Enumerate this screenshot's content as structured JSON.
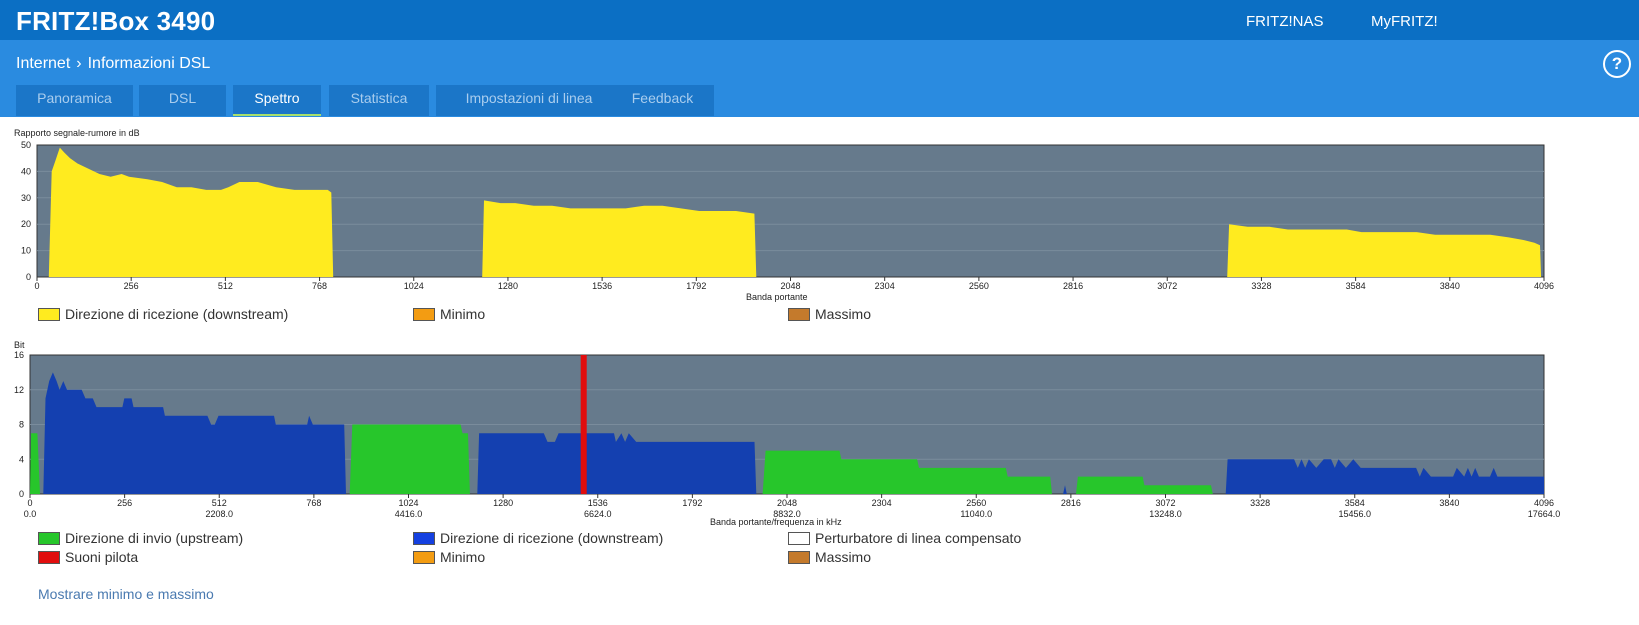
{
  "header": {
    "brand": "FRITZ!Box 3490",
    "links": [
      "FRITZ!NAS",
      "MyFRITZ!"
    ]
  },
  "breadcrumb": {
    "parent": "Internet",
    "current": "Informazioni DSL",
    "help": "?"
  },
  "tabs": [
    {
      "label": "Panoramica",
      "active": false
    },
    {
      "label": "DSL",
      "active": false
    },
    {
      "label": "Spettro",
      "active": true
    },
    {
      "label": "Statistica",
      "active": false
    },
    {
      "label": "Impostazioni di linea",
      "active": false
    },
    {
      "label": "Feedback",
      "active": false
    }
  ],
  "colors": {
    "plot_bg": "#667a8c",
    "downstream_snr": "#ffeb1f",
    "upstream_bits": "#27c62b",
    "downstream_bits": "#1440b0",
    "pilot": "#e10d0d",
    "minimum": "#f39c12",
    "maximum": "#c47a2c",
    "compensated": "#ffffff"
  },
  "chart_data": [
    {
      "type": "area",
      "title": "Rapporto segnale-rumore in dB",
      "xlabel": "Banda portante",
      "ylabel": "",
      "xlim": [
        0,
        4096
      ],
      "ylim": [
        0,
        50
      ],
      "xticks": [
        0,
        256,
        512,
        768,
        1024,
        1280,
        1536,
        1792,
        2048,
        2304,
        2560,
        2816,
        3072,
        3328,
        3584,
        3840,
        4096
      ],
      "yticks": [
        0,
        10,
        20,
        30,
        40,
        50
      ],
      "grid": true,
      "legend_position": "bottom",
      "legend": [
        "Direzione di ricezione (downstream)",
        "Minimo",
        "Massimo"
      ],
      "series": [
        {
          "name": "Direzione di ricezione (downstream)",
          "color_key": "downstream_snr",
          "points": [
            [
              32,
              0
            ],
            [
              40,
              40
            ],
            [
              50,
              44
            ],
            [
              62,
              49
            ],
            [
              75,
              47
            ],
            [
              90,
              45
            ],
            [
              110,
              43
            ],
            [
              140,
              41
            ],
            [
              170,
              39
            ],
            [
              200,
              38
            ],
            [
              230,
              39
            ],
            [
              250,
              38
            ],
            [
              300,
              37
            ],
            [
              340,
              36
            ],
            [
              380,
              34
            ],
            [
              420,
              34
            ],
            [
              460,
              33
            ],
            [
              500,
              33
            ],
            [
              520,
              34
            ],
            [
              550,
              36
            ],
            [
              600,
              36
            ],
            [
              650,
              34
            ],
            [
              700,
              33
            ],
            [
              750,
              33
            ],
            [
              790,
              33
            ],
            [
              800,
              32
            ],
            [
              805,
              0
            ],
            [
              1210,
              0
            ],
            [
              1215,
              29
            ],
            [
              1260,
              28
            ],
            [
              1300,
              28
            ],
            [
              1350,
              27
            ],
            [
              1400,
              27
            ],
            [
              1450,
              26
            ],
            [
              1500,
              26
            ],
            [
              1550,
              26
            ],
            [
              1600,
              26
            ],
            [
              1650,
              27
            ],
            [
              1700,
              27
            ],
            [
              1750,
              26
            ],
            [
              1800,
              25
            ],
            [
              1850,
              25
            ],
            [
              1900,
              25
            ],
            [
              1950,
              24
            ],
            [
              1955,
              0
            ],
            [
              3235,
              0
            ],
            [
              3240,
              20
            ],
            [
              3290,
              19
            ],
            [
              3350,
              19
            ],
            [
              3400,
              18
            ],
            [
              3500,
              18
            ],
            [
              3560,
              18
            ],
            [
              3600,
              17
            ],
            [
              3700,
              17
            ],
            [
              3750,
              17
            ],
            [
              3800,
              16
            ],
            [
              3900,
              16
            ],
            [
              3950,
              16
            ],
            [
              4000,
              15
            ],
            [
              4040,
              14
            ],
            [
              4070,
              13
            ],
            [
              4085,
              12
            ],
            [
              4088,
              0
            ]
          ]
        }
      ]
    },
    {
      "type": "area",
      "title": "Bit",
      "xlabel": "Banda portante/frequenza in kHz",
      "ylabel": "",
      "xlim": [
        0,
        4096
      ],
      "ylim": [
        0,
        16
      ],
      "xticks": [
        0,
        256,
        512,
        768,
        1024,
        1280,
        1536,
        1792,
        2048,
        2304,
        2560,
        2816,
        3072,
        3328,
        3584,
        3840,
        4096
      ],
      "yticks": [
        0,
        4,
        8,
        12,
        16
      ],
      "freq_ticks": [
        [
          0,
          "0.0"
        ],
        [
          512,
          "2208.0"
        ],
        [
          1024,
          "4416.0"
        ],
        [
          1536,
          "6624.0"
        ],
        [
          2048,
          "8832.0"
        ],
        [
          2560,
          "11040.0"
        ],
        [
          3072,
          "13248.0"
        ],
        [
          3584,
          "15456.0"
        ],
        [
          4096,
          "17664.0"
        ]
      ],
      "grid": true,
      "legend_position": "bottom",
      "legend": [
        "Direzione di invio (upstream)",
        "Direzione di ricezione (downstream)",
        "Perturbatore di linea compensato",
        "Suoni pilota",
        "Minimo",
        "Massimo"
      ],
      "pilot_tone": 1498,
      "series": [
        {
          "name": "Direzione di invio (upstream)",
          "color_key": "upstream_bits",
          "segments": [
            [
              [
                0,
                0
              ],
              [
                3,
                7
              ],
              [
                20,
                7
              ],
              [
                27,
                0
              ]
            ],
            [
              [
                865,
                0
              ],
              [
                872,
                8
              ],
              [
                1165,
                8
              ],
              [
                1170,
                7
              ],
              [
                1185,
                7
              ],
              [
                1190,
                0
              ]
            ],
            [
              [
                1982,
                0
              ],
              [
                1990,
                5
              ],
              [
                2190,
                5
              ],
              [
                2195,
                4
              ],
              [
                2400,
                4
              ],
              [
                2405,
                3
              ],
              [
                2640,
                3
              ],
              [
                2645,
                2
              ],
              [
                2760,
                2
              ],
              [
                2765,
                0
              ],
              [
                2830,
                0
              ],
              [
                2835,
                2
              ],
              [
                3010,
                2
              ],
              [
                3015,
                1
              ],
              [
                3195,
                1
              ],
              [
                3200,
                0
              ]
            ]
          ]
        },
        {
          "name": "Direzione di ricezione (downstream)",
          "color_key": "downstream_bits",
          "segments": [
            [
              [
                36,
                0
              ],
              [
                42,
                11
              ],
              [
                52,
                13
              ],
              [
                62,
                14
              ],
              [
                72,
                13
              ],
              [
                80,
                12
              ],
              [
                90,
                13
              ],
              [
                100,
                12
              ],
              [
                140,
                12
              ],
              [
                150,
                11
              ],
              [
                170,
                11
              ],
              [
                180,
                10
              ],
              [
                250,
                10
              ],
              [
                255,
                11
              ],
              [
                275,
                11
              ],
              [
                280,
                10
              ],
              [
                360,
                10
              ],
              [
                365,
                9
              ],
              [
                480,
                9
              ],
              [
                490,
                8
              ],
              [
                500,
                8
              ],
              [
                510,
                9
              ],
              [
                660,
                9
              ],
              [
                665,
                8
              ],
              [
                750,
                8
              ],
              [
                755,
                9
              ],
              [
                765,
                8
              ],
              [
                850,
                8
              ],
              [
                855,
                0
              ]
            ],
            [
              [
                1210,
                0
              ],
              [
                1215,
                7
              ],
              [
                1390,
                7
              ],
              [
                1400,
                6
              ],
              [
                1420,
                6
              ],
              [
                1430,
                7
              ],
              [
                1580,
                7
              ],
              [
                1585,
                6
              ],
              [
                1600,
                7
              ],
              [
                1610,
                6
              ],
              [
                1620,
                7
              ],
              [
                1640,
                6
              ],
              [
                1960,
                6
              ],
              [
                1965,
                0
              ]
            ],
            [
              [
                2795,
                0
              ],
              [
                2800,
                1
              ],
              [
                2805,
                0
              ]
            ],
            [
              [
                3235,
                0
              ],
              [
                3240,
                4
              ],
              [
                3420,
                4
              ],
              [
                3430,
                3
              ],
              [
                3440,
                4
              ],
              [
                3450,
                3
              ],
              [
                3460,
                4
              ],
              [
                3480,
                3
              ],
              [
                3500,
                4
              ],
              [
                3520,
                4
              ],
              [
                3530,
                3
              ],
              [
                3540,
                4
              ],
              [
                3560,
                3
              ],
              [
                3580,
                4
              ],
              [
                3600,
                3
              ],
              [
                3750,
                3
              ],
              [
                3760,
                2
              ],
              [
                3770,
                3
              ],
              [
                3790,
                2
              ],
              [
                3850,
                2
              ],
              [
                3860,
                3
              ],
              [
                3880,
                2
              ],
              [
                3890,
                3
              ],
              [
                3900,
                2
              ],
              [
                3910,
                3
              ],
              [
                3920,
                2
              ],
              [
                3950,
                2
              ],
              [
                3960,
                3
              ],
              [
                3970,
                2
              ],
              [
                4096,
                2
              ],
              [
                4096,
                0
              ]
            ]
          ]
        }
      ]
    }
  ],
  "legend_colors": {
    "Direzione di ricezione (downstream)": "#ffeb1f",
    "Minimo": "#f39c12",
    "Massimo": "#c47a2c"
  },
  "show_minmax_link": "Mostrare minimo e massimo"
}
